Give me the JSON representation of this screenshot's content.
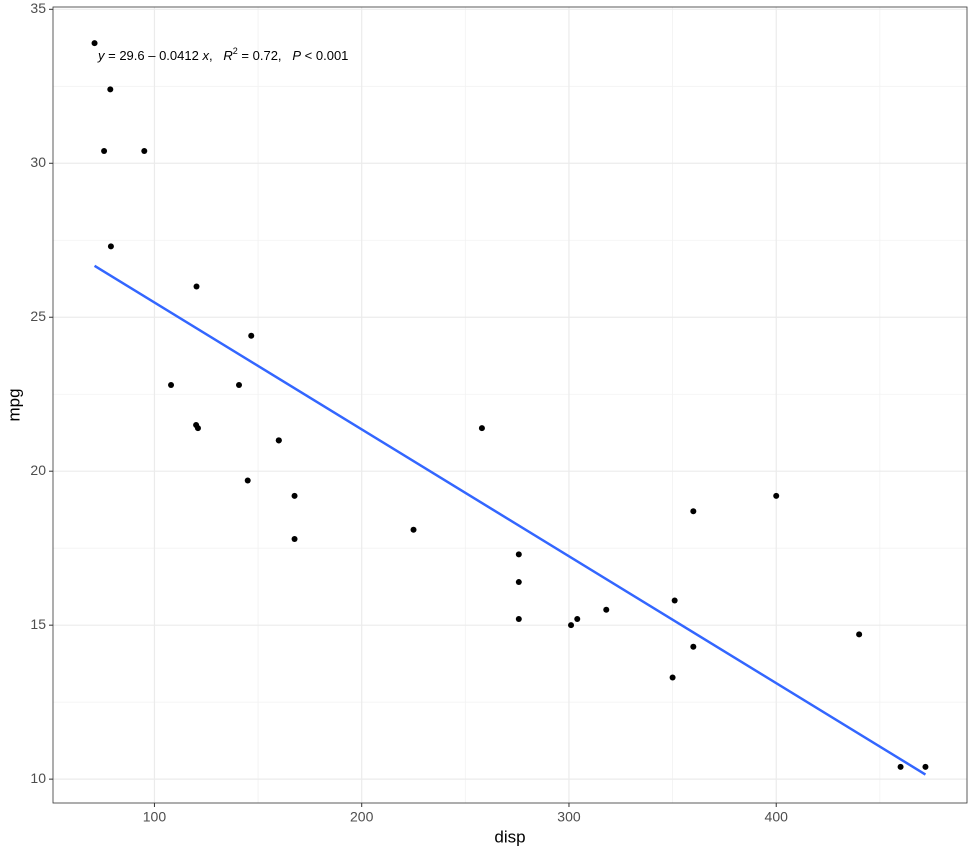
{
  "chart_data": {
    "type": "scatter",
    "x_label": "disp",
    "y_label": "mpg",
    "annotation": [
      "y",
      " = 29.6 – 0.0412 ",
      "x",
      ",   ",
      "R",
      "2",
      " = 0.72,   ",
      "P",
      " < 0.001"
    ],
    "xlim": [
      51.055,
      492.045
    ],
    "ylim": [
      9.225,
      35.075
    ],
    "xticks": [
      100,
      200,
      300,
      400
    ],
    "yticks": [
      10,
      15,
      20,
      25,
      30,
      35
    ],
    "x_minor_grid": [
      150,
      250,
      350,
      450
    ],
    "y_minor_grid": [
      12.5,
      17.5,
      22.5,
      27.5,
      32.5
    ],
    "grid": true,
    "series": [
      {
        "color": "#000000",
        "x": [
          160,
          160,
          108,
          258,
          360,
          225,
          360,
          146.7,
          140.8,
          167.6,
          167.6,
          275.8,
          275.8,
          275.8,
          472,
          460,
          440,
          78.7,
          75.7,
          71.1,
          120.1,
          318,
          304,
          350,
          400,
          79,
          120.3,
          95.1,
          351,
          145,
          301,
          121
        ],
        "values": [
          21.0,
          21.0,
          22.8,
          21.4,
          18.7,
          18.1,
          14.3,
          24.4,
          22.8,
          19.2,
          17.8,
          16.4,
          17.3,
          15.2,
          10.4,
          10.4,
          14.7,
          32.4,
          30.4,
          33.9,
          21.5,
          15.5,
          15.2,
          13.3,
          19.2,
          27.3,
          26.0,
          30.4,
          15.8,
          19.7,
          15.0,
          21.4
        ]
      },
      {
        "type": "line",
        "color": "#3366ff",
        "x": [
          71.1,
          472
        ],
        "values": [
          26.67,
          10.15
        ]
      }
    ]
  }
}
